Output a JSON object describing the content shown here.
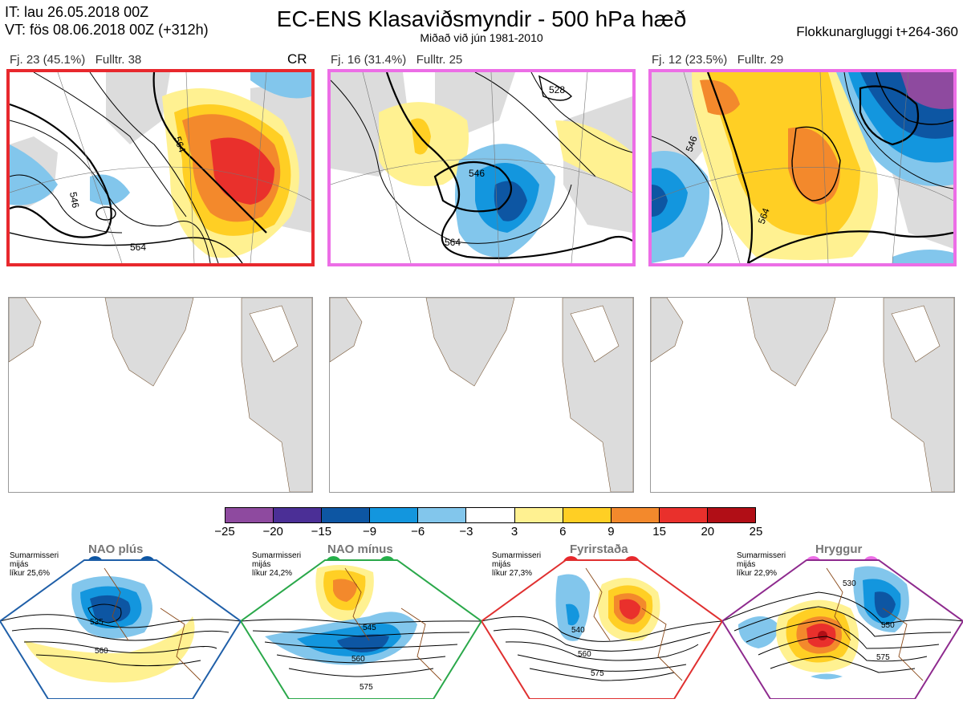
{
  "header": {
    "init_time": "IT: lau 26.05.2018 00Z",
    "valid_time": "VT: fös 08.06.2018 00Z  (+312h)",
    "title": "EC-ENS Klasaviðsmyndir - 500 hPa hæð",
    "subtitle": "Miðað við jún 1981-2010",
    "window": "Flokkunargluggi t+264-360"
  },
  "clusters": [
    {
      "label": "Fj. 23 (45.1%)",
      "full": "Fulltr. 38",
      "tag": "CR",
      "border_color": "#e8282d",
      "contours": [
        "564",
        "546"
      ]
    },
    {
      "label": "Fj. 16 (31.4%)",
      "full": "Fulltr. 25",
      "tag": "",
      "border_color": "#ec6ee6",
      "contours": [
        "546",
        "564",
        "528"
      ]
    },
    {
      "label": "Fj. 12 (23.5%)",
      "full": "Fulltr. 29",
      "tag": "",
      "border_color": "#ec6ee6",
      "contours": [
        "564",
        "546"
      ]
    }
  ],
  "colorbar": {
    "colors": [
      "#8e4a9f",
      "#4b2f96",
      "#0d56a3",
      "#1396de",
      "#82c6ec",
      "#ffffff",
      "#fff191",
      "#ffcf24",
      "#f3892c",
      "#e9302c",
      "#b10e16"
    ],
    "ticks": [
      "−25",
      "−20",
      "−15",
      "−9",
      "−6",
      "−3",
      "3",
      "6",
      "9",
      "15",
      "20",
      "25"
    ]
  },
  "regimes": [
    {
      "name": "NAO plús",
      "note": [
        "Sumarmisseri",
        "mijás",
        "líkur 25,6%"
      ],
      "dot_color": "#0d56a3",
      "border_color": "#1f5fa8",
      "contours": [
        "535",
        "560"
      ]
    },
    {
      "name": "NAO mínus",
      "note": [
        "Sumarmisseri",
        "mijás",
        "líkur 24,2%"
      ],
      "dot_color": "#24b04a",
      "border_color": "#2aa84a",
      "contours": [
        "545",
        "560",
        "575"
      ]
    },
    {
      "name": "Fyrirstaða",
      "note": [
        "Sumarmisseri",
        "mijás",
        "líkur 27,3%"
      ],
      "dot_color": "#e8282d",
      "border_color": "#e03030",
      "contours": [
        "540",
        "560",
        "575"
      ]
    },
    {
      "name": "Hryggur",
      "note": [
        "Sumarmisseri",
        "mijás",
        "líkur 22,9%"
      ],
      "dot_color": "#ec6ee6",
      "border_color": "#8e2a8e",
      "contours": [
        "530",
        "550",
        "575"
      ]
    }
  ]
}
